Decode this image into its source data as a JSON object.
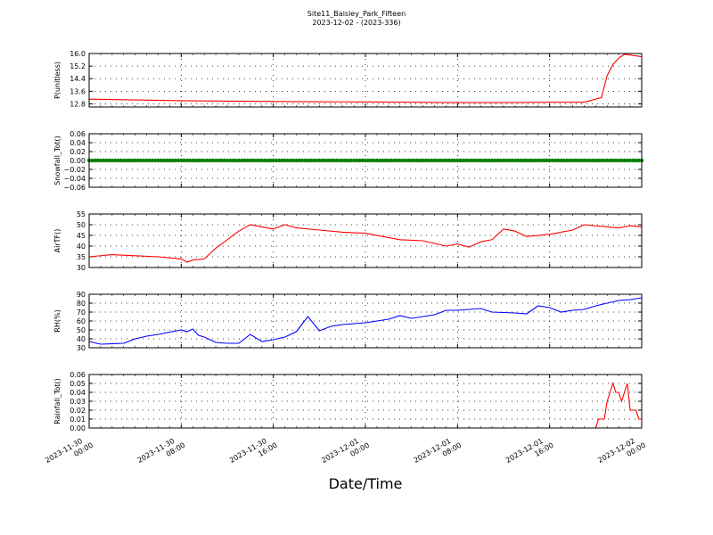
{
  "figure": {
    "title": "Site11_Baisley_Park_Fifteen",
    "subtitle": "2023-12-02 - (2023-336)",
    "xlabel": "Date/Time",
    "x_ticks": [
      "2023-11-30\n00:00",
      "2023-11-30\n08:00",
      "2023-11-30\n16:00",
      "2023-12-01\n00:00",
      "2023-12-01\n08:00",
      "2023-12-01\n16:00",
      "2023-12-02\n00:00"
    ],
    "x_range": [
      "2023-11-30 00:00",
      "2023-12-02 00:00"
    ]
  },
  "colors": {
    "red": "#ff0000",
    "green": "#008000",
    "blue": "#0000ff",
    "grid": "#000000"
  },
  "chart_data": [
    {
      "type": "line",
      "ylabel": "P(unitless)",
      "ylim": [
        12.6,
        16.0
      ],
      "yticks": [
        12.8,
        13.6,
        14.4,
        15.2,
        16.0
      ],
      "yticklabels": [
        "12.8",
        "13.6",
        "14.4",
        "15.2",
        "16.0"
      ],
      "series": [
        {
          "color": "red",
          "points": [
            [
              "2023-11-30 00:00",
              13.1
            ],
            [
              "2023-11-30 04:00",
              13.05
            ],
            [
              "2023-11-30 08:00",
              13.0
            ],
            [
              "2023-11-30 12:00",
              12.97
            ],
            [
              "2023-11-30 16:00",
              12.95
            ],
            [
              "2023-11-30 20:00",
              12.93
            ],
            [
              "2023-12-01 00:00",
              12.92
            ],
            [
              "2023-12-01 04:00",
              12.9
            ],
            [
              "2023-12-01 08:00",
              12.88
            ],
            [
              "2023-12-01 12:00",
              12.88
            ],
            [
              "2023-12-01 16:00",
              12.9
            ],
            [
              "2023-12-01 19:00",
              12.9
            ],
            [
              "2023-12-01 20:30",
              13.2
            ],
            [
              "2023-12-01 21:00",
              14.6
            ],
            [
              "2023-12-01 21:30",
              15.3
            ],
            [
              "2023-12-01 22:00",
              15.7
            ],
            [
              "2023-12-01 22:30",
              15.95
            ],
            [
              "2023-12-01 23:00",
              15.9
            ],
            [
              "2023-12-02 00:00",
              15.8
            ]
          ]
        }
      ]
    },
    {
      "type": "scatter",
      "ylabel": "Snowfall_Tot()",
      "ylim": [
        -0.06,
        0.06
      ],
      "yticks": [
        -0.06,
        -0.04,
        -0.02,
        0.0,
        0.02,
        0.04,
        0.06
      ],
      "yticklabels": [
        "−0.06",
        "−0.04",
        "−0.02",
        "0.00",
        "0.02",
        "0.04",
        "0.06"
      ],
      "series": [
        {
          "color": "green",
          "constant": 0.0,
          "from": "2023-11-30 00:00",
          "to": "2023-12-02 00:00",
          "step_minutes": 15
        }
      ]
    },
    {
      "type": "line",
      "ylabel": "AirTF()",
      "ylim": [
        30,
        55
      ],
      "yticks": [
        30,
        35,
        40,
        45,
        50,
        55
      ],
      "yticklabels": [
        "30",
        "35",
        "40",
        "45",
        "50",
        "55"
      ],
      "series": [
        {
          "color": "red",
          "points": [
            [
              "2023-11-30 00:00",
              35
            ],
            [
              "2023-11-30 02:00",
              36
            ],
            [
              "2023-11-30 04:00",
              35.5
            ],
            [
              "2023-11-30 06:00",
              35
            ],
            [
              "2023-11-30 08:00",
              34
            ],
            [
              "2023-11-30 08:30",
              32.5
            ],
            [
              "2023-11-30 09:00",
              33.5
            ],
            [
              "2023-11-30 10:00",
              34
            ],
            [
              "2023-11-30 11:00",
              39
            ],
            [
              "2023-11-30 12:00",
              43
            ],
            [
              "2023-11-30 13:00",
              47
            ],
            [
              "2023-11-30 14:00",
              50
            ],
            [
              "2023-11-30 15:00",
              49
            ],
            [
              "2023-11-30 16:00",
              48
            ],
            [
              "2023-11-30 17:00",
              50
            ],
            [
              "2023-11-30 18:00",
              48.5
            ],
            [
              "2023-11-30 20:00",
              47.5
            ],
            [
              "2023-11-30 22:00",
              46.5
            ],
            [
              "2023-12-01 00:00",
              46
            ],
            [
              "2023-12-01 02:00",
              44
            ],
            [
              "2023-12-01 03:00",
              43
            ],
            [
              "2023-12-01 05:00",
              42.5
            ],
            [
              "2023-12-01 07:00",
              40
            ],
            [
              "2023-12-01 08:00",
              41
            ],
            [
              "2023-12-01 09:00",
              39.5
            ],
            [
              "2023-12-01 10:00",
              42
            ],
            [
              "2023-12-01 11:00",
              43
            ],
            [
              "2023-12-01 12:00",
              48
            ],
            [
              "2023-12-01 13:00",
              47
            ],
            [
              "2023-12-01 14:00",
              44.5
            ],
            [
              "2023-12-01 16:00",
              45.5
            ],
            [
              "2023-12-01 18:00",
              47.5
            ],
            [
              "2023-12-01 19:00",
              50
            ],
            [
              "2023-12-01 21:00",
              49
            ],
            [
              "2023-12-01 22:00",
              48.5
            ],
            [
              "2023-12-01 23:00",
              49.5
            ],
            [
              "2023-12-02 00:00",
              49
            ]
          ]
        }
      ]
    },
    {
      "type": "line",
      "ylabel": "RH(%)",
      "ylim": [
        30,
        90
      ],
      "yticks": [
        30,
        40,
        50,
        60,
        70,
        80,
        90
      ],
      "yticklabels": [
        "30",
        "40",
        "50",
        "60",
        "70",
        "80",
        "90"
      ],
      "series": [
        {
          "color": "blue",
          "points": [
            [
              "2023-11-30 00:00",
              37
            ],
            [
              "2023-11-30 01:00",
              34
            ],
            [
              "2023-11-30 03:00",
              35
            ],
            [
              "2023-11-30 04:00",
              40
            ],
            [
              "2023-11-30 05:00",
              43
            ],
            [
              "2023-11-30 06:00",
              45
            ],
            [
              "2023-11-30 08:00",
              50
            ],
            [
              "2023-11-30 08:30",
              48
            ],
            [
              "2023-11-30 09:00",
              51
            ],
            [
              "2023-11-30 09:30",
              44
            ],
            [
              "2023-11-30 10:00",
              42
            ],
            [
              "2023-11-30 11:00",
              36
            ],
            [
              "2023-11-30 12:00",
              35
            ],
            [
              "2023-11-30 13:00",
              35
            ],
            [
              "2023-11-30 14:00",
              45
            ],
            [
              "2023-11-30 15:00",
              37
            ],
            [
              "2023-11-30 16:00",
              39
            ],
            [
              "2023-11-30 17:00",
              42
            ],
            [
              "2023-11-30 18:00",
              48
            ],
            [
              "2023-11-30 19:00",
              65
            ],
            [
              "2023-11-30 20:00",
              49
            ],
            [
              "2023-11-30 21:00",
              54
            ],
            [
              "2023-11-30 22:00",
              56
            ],
            [
              "2023-12-01 00:00",
              58
            ],
            [
              "2023-12-01 02:00",
              62
            ],
            [
              "2023-12-01 03:00",
              66
            ],
            [
              "2023-12-01 04:00",
              63
            ],
            [
              "2023-12-01 06:00",
              67
            ],
            [
              "2023-12-01 07:00",
              72
            ],
            [
              "2023-12-01 08:00",
              72
            ],
            [
              "2023-12-01 09:00",
              73
            ],
            [
              "2023-12-01 10:00",
              74
            ],
            [
              "2023-12-01 11:00",
              70
            ],
            [
              "2023-12-01 13:00",
              69
            ],
            [
              "2023-12-01 14:00",
              68
            ],
            [
              "2023-12-01 15:00",
              77
            ],
            [
              "2023-12-01 16:00",
              75
            ],
            [
              "2023-12-01 17:00",
              70
            ],
            [
              "2023-12-01 18:00",
              72
            ],
            [
              "2023-12-01 19:00",
              73
            ],
            [
              "2023-12-01 20:00",
              77
            ],
            [
              "2023-12-01 21:00",
              80
            ],
            [
              "2023-12-01 22:00",
              83
            ],
            [
              "2023-12-01 23:00",
              84
            ],
            [
              "2023-12-02 00:00",
              86
            ]
          ]
        }
      ]
    },
    {
      "type": "line",
      "ylabel": "Rainfall_Tot()",
      "ylim": [
        0.0,
        0.06
      ],
      "yticks": [
        0.0,
        0.01,
        0.02,
        0.03,
        0.04,
        0.05,
        0.06
      ],
      "yticklabels": [
        "0.00",
        "0.01",
        "0.02",
        "0.03",
        "0.04",
        "0.05",
        "0.06"
      ],
      "series": [
        {
          "color": "red",
          "points": [
            [
              "2023-11-30 00:00",
              0
            ],
            [
              "2023-12-01 20:00",
              0
            ],
            [
              "2023-12-01 20:15",
              0.01
            ],
            [
              "2023-12-01 20:45",
              0.01
            ],
            [
              "2023-12-01 21:00",
              0.03
            ],
            [
              "2023-12-01 21:30",
              0.05
            ],
            [
              "2023-12-01 21:45",
              0.04
            ],
            [
              "2023-12-01 22:00",
              0.04
            ],
            [
              "2023-12-01 22:15",
              0.03
            ],
            [
              "2023-12-01 22:45",
              0.05
            ],
            [
              "2023-12-01 23:00",
              0.02
            ],
            [
              "2023-12-01 23:30",
              0.02
            ],
            [
              "2023-12-01 23:45",
              0.01
            ],
            [
              "2023-12-02 00:00",
              0.01
            ]
          ]
        }
      ]
    }
  ]
}
